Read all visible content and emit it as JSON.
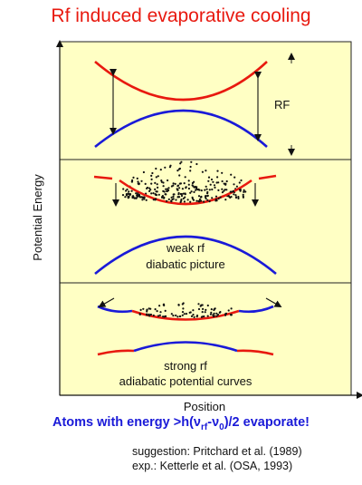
{
  "title": "Rf induced evaporative cooling",
  "axes": {
    "ylabel": "Potential Energy",
    "xlabel": "Position"
  },
  "panels": [
    {
      "labels": [
        "RF"
      ]
    },
    {
      "labels": [
        "weak rf",
        "diabatic picture"
      ]
    },
    {
      "labels": [
        "strong rf",
        "adiabatic potential curves"
      ]
    }
  ],
  "conclusion": {
    "prefix": "Atoms with energy >h(",
    "nu1": "ν",
    "sub1": "rf",
    "minus": "-",
    "nu2": "ν",
    "sub2": "0",
    "suffix": ")/2 evaporate!"
  },
  "references": [
    "suggestion:  Pritchard et al. (1989)",
    "exp.:  Ketterle et al. (OSA, 1993)"
  ],
  "colors": {
    "title": "#e8190f",
    "red_curve": "#e8190f",
    "blue_curve": "#1a1ad8",
    "panel_fill": "#ffffc4",
    "conclusion": "#1a1ad8"
  }
}
